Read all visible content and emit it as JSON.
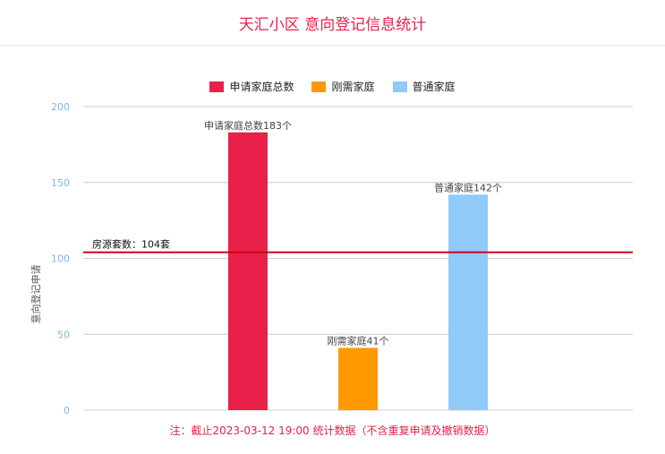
{
  "header": {
    "title": "天汇小区 意向登记信息统计"
  },
  "note": "注：截止2023-03-12 19:00 统计数据（不含重复申请及撤销数据）",
  "chart_data": {
    "type": "bar",
    "ylabel": "意向登记申请",
    "ylim": [
      0,
      200
    ],
    "yticks": [
      0,
      50,
      100,
      150,
      200
    ],
    "grid": true,
    "legend_position": "top-center",
    "series": [
      {
        "name": "申请家庭总数",
        "value": 183,
        "color": "#e8204a",
        "label": "申请家庭总数183个"
      },
      {
        "name": "刚需家庭",
        "value": 41,
        "color": "#ff9900",
        "label": "刚需家庭41个"
      },
      {
        "name": "普通家庭",
        "value": 142,
        "color": "#90caf9",
        "label": "普通家庭142个"
      }
    ],
    "reference_line": {
      "value": 104,
      "label": "房源套数：104套",
      "color": "#d0021b"
    }
  }
}
